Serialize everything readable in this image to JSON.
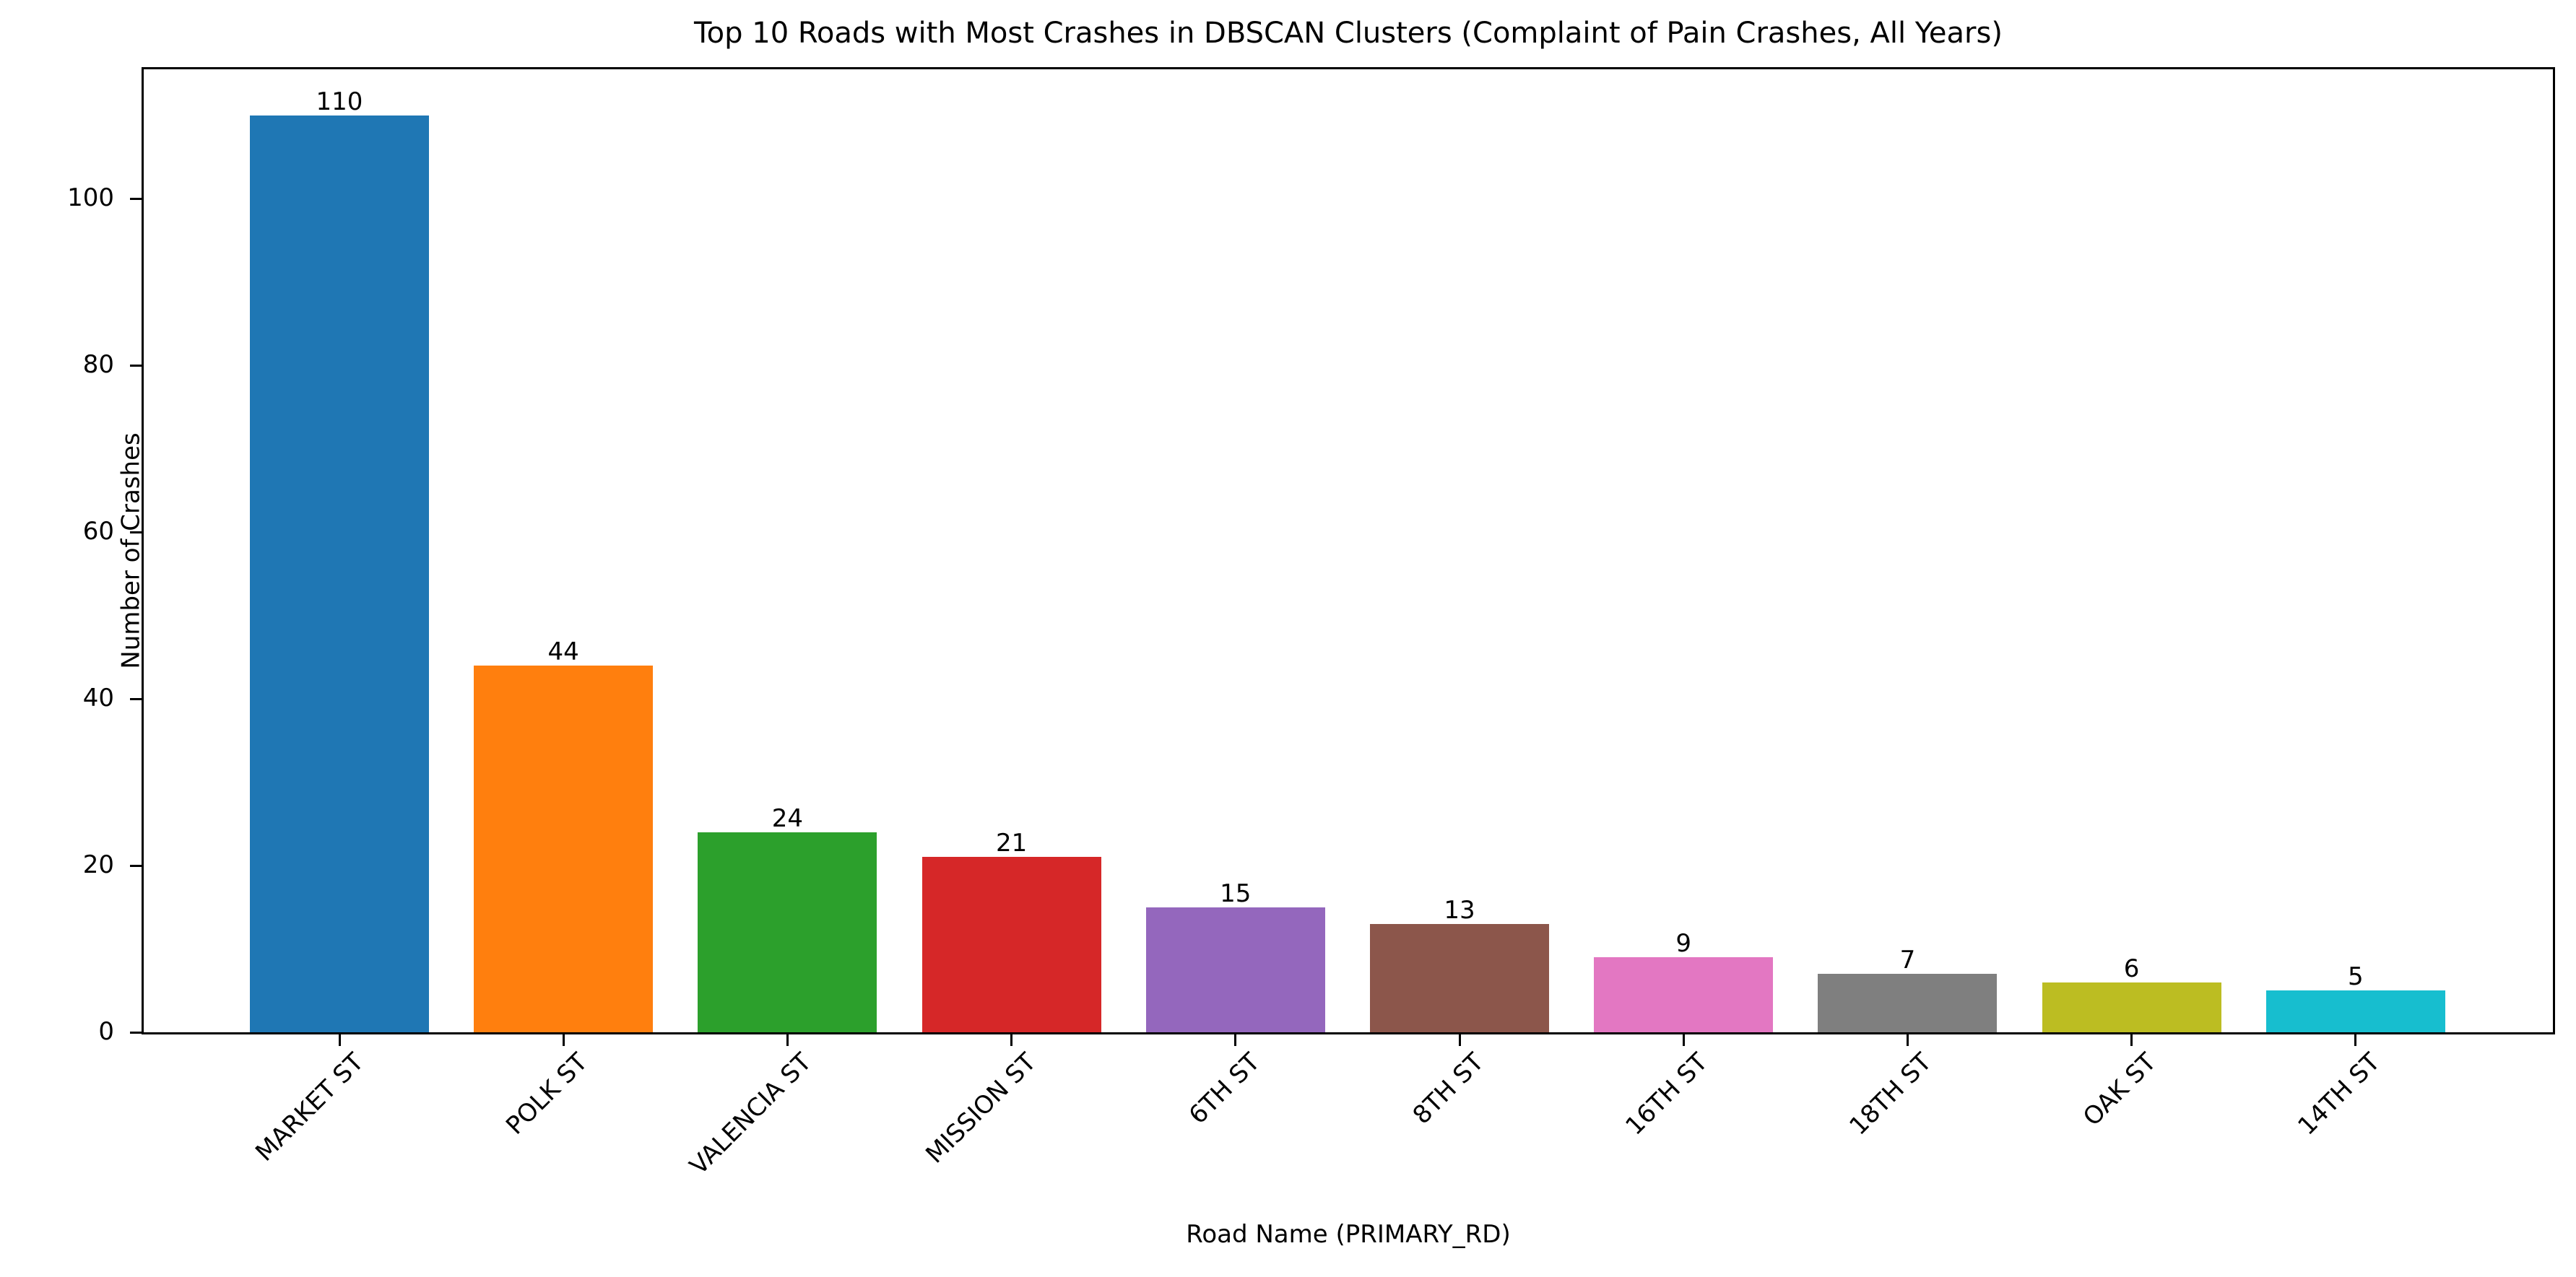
{
  "chart_data": {
    "type": "bar",
    "title": "Top 10 Roads with Most Crashes in DBSCAN Clusters (Complaint of Pain Crashes, All Years)",
    "xlabel": "Road Name (PRIMARY_RD)",
    "ylabel": "Number of Crashes",
    "categories": [
      "MARKET ST",
      "POLK ST",
      "VALENCIA ST",
      "MISSION ST",
      "6TH ST",
      "8TH ST",
      "16TH ST",
      "18TH ST",
      "OAK ST",
      "14TH ST"
    ],
    "values": [
      110,
      44,
      24,
      21,
      15,
      13,
      9,
      7,
      6,
      5
    ],
    "colors": [
      "#1f77b4",
      "#ff7f0e",
      "#2ca02c",
      "#d62728",
      "#9467bd",
      "#8c564b",
      "#e377c2",
      "#7f7f7f",
      "#bcbd22",
      "#17becf"
    ],
    "data_labels": [
      "110",
      "44",
      "24",
      "21",
      "15",
      "13",
      "9",
      "7",
      "6",
      "5"
    ],
    "yticks": [
      0,
      20,
      40,
      60,
      80,
      100
    ],
    "ytick_labels": [
      "0",
      "20",
      "40",
      "60",
      "80",
      "100"
    ],
    "ylim": [
      0,
      115.5
    ],
    "xtick_rotation": 45,
    "grid": false,
    "legend": null
  }
}
